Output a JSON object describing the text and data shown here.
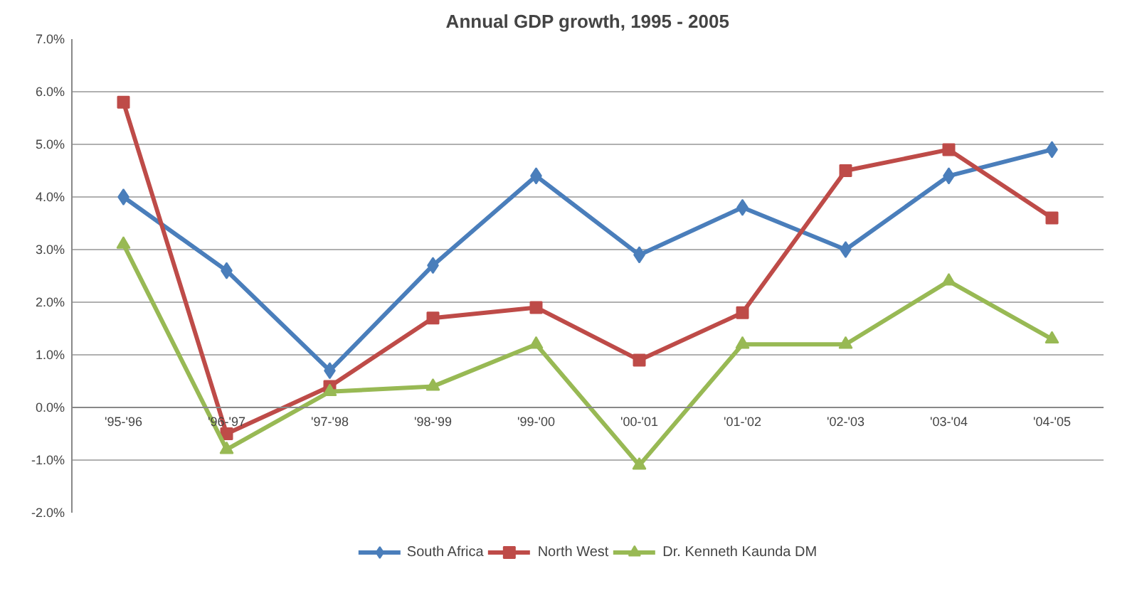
{
  "chart_data": {
    "type": "line",
    "title": "Annual GDP growth, 1995 - 2005",
    "categories": [
      "'95-'96",
      "'96-'97",
      "'97-'98",
      "'98-'99",
      "'99-'00",
      "'00-'01",
      "'01-'02",
      "'02-'03",
      "'03-'04",
      "'04-'05"
    ],
    "series": [
      {
        "name": "South Africa",
        "color": "#4a7ebb",
        "marker": "diamond",
        "values": [
          4.0,
          2.6,
          0.7,
          2.7,
          4.4,
          2.9,
          3.8,
          3.0,
          4.4,
          4.9
        ]
      },
      {
        "name": "North West",
        "color": "#be4b48",
        "marker": "square",
        "values": [
          5.8,
          -0.5,
          0.4,
          1.7,
          1.9,
          0.9,
          1.8,
          4.5,
          4.9,
          3.6
        ]
      },
      {
        "name": "Dr. Kenneth Kaunda DM",
        "color": "#98b954",
        "marker": "triangle",
        "values": [
          3.1,
          -0.8,
          0.3,
          0.4,
          1.2,
          -1.1,
          1.2,
          1.2,
          2.4,
          1.3
        ]
      }
    ],
    "ylim": [
      -2.0,
      7.0
    ],
    "yticks": [
      {
        "value": -2,
        "label": "-2.0%"
      },
      {
        "value": -1,
        "label": "-1.0%"
      },
      {
        "value": 0,
        "label": "0.0%"
      },
      {
        "value": 1,
        "label": "1.0%"
      },
      {
        "value": 2,
        "label": "2.0%"
      },
      {
        "value": 3,
        "label": "3.0%"
      },
      {
        "value": 4,
        "label": "4.0%"
      },
      {
        "value": 5,
        "label": "5.0%"
      },
      {
        "value": 6,
        "label": "6.0%"
      },
      {
        "value": 7,
        "label": "7.0%"
      }
    ],
    "grid": "y",
    "legend": "bottom",
    "line_style": "solid"
  }
}
